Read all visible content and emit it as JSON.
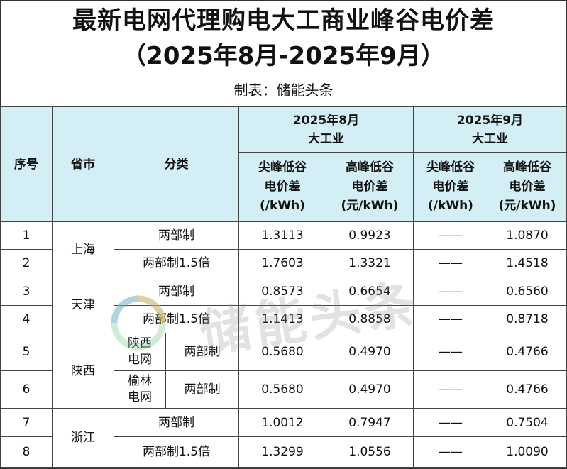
{
  "title_line1": "最新电网代理购电大工商业峰谷电价差",
  "title_line2": "（2025年8月-2025年9月）",
  "maker": "制表：储能头条",
  "watermark_text": "储能头条",
  "header": {
    "seq": "序号",
    "province": "省市",
    "category": "分类",
    "month1": "2025年8月",
    "month1_sub": "大工业",
    "month2": "2025年9月",
    "month2_sub": "大工业",
    "col_a_l1": "尖峰低谷",
    "col_a_l2": "电价差",
    "col_a_l3": "(/kWh)",
    "col_b_l1": "高峰低谷",
    "col_b_l2": "电价差",
    "col_b_l3": "(元/kWh)",
    "col_c_l1": "尖峰低谷",
    "col_c_l2": "电价差",
    "col_c_l3": "(/kWh)",
    "col_d_l1": "高峰低谷",
    "col_d_l2": "电价差",
    "col_d_l3": "(元/kWh)"
  },
  "provinces": {
    "shanghai": "上海",
    "tianjin": "天津",
    "shaanxi": "陕西",
    "zhejiang": "浙江"
  },
  "sub_grids": {
    "shaanxi_grid": "陕西电网",
    "shaanxi_grid_l1": "陕西",
    "shaanxi_grid_l2": "电网",
    "yulin_grid_l1": "榆林",
    "yulin_grid_l2": "电网"
  },
  "rows": [
    {
      "seq": "1",
      "category": "两部制",
      "aug_peak": "1.3113",
      "aug_high": "0.9923",
      "sep_peak": "——",
      "sep_high": "1.0870"
    },
    {
      "seq": "2",
      "category": "两部制1.5倍",
      "aug_peak": "1.7603",
      "aug_high": "1.3321",
      "sep_peak": "——",
      "sep_high": "1.4518"
    },
    {
      "seq": "3",
      "category": "两部制",
      "aug_peak": "0.8573",
      "aug_high": "0.6654",
      "sep_peak": "——",
      "sep_high": "0.6560"
    },
    {
      "seq": "4",
      "category": "两部制1.5倍",
      "aug_peak": "1.1413",
      "aug_high": "0.8858",
      "sep_peak": "——",
      "sep_high": "0.8718"
    },
    {
      "seq": "5",
      "category": "两部制",
      "aug_peak": "0.5680",
      "aug_high": "0.4970",
      "sep_peak": "——",
      "sep_high": "0.4766"
    },
    {
      "seq": "6",
      "category": "两部制",
      "aug_peak": "0.5680",
      "aug_high": "0.4970",
      "sep_peak": "——",
      "sep_high": "0.4766"
    },
    {
      "seq": "7",
      "category": "两部制",
      "aug_peak": "1.0012",
      "aug_high": "0.7947",
      "sep_peak": "——",
      "sep_high": "0.7504"
    },
    {
      "seq": "8",
      "category": "两部制1.5倍",
      "aug_peak": "1.3299",
      "aug_high": "1.0556",
      "sep_peak": "——",
      "sep_high": "1.0090"
    }
  ]
}
